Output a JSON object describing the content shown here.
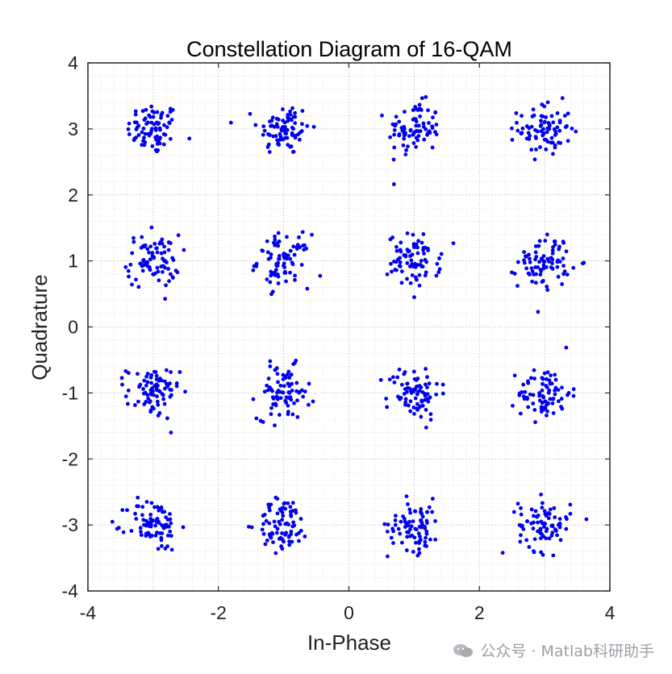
{
  "chart_data": {
    "type": "scatter",
    "title": "Constellation Diagram of 16-QAM",
    "xlabel": "In-Phase",
    "ylabel": "Quadrature",
    "xlim": [
      -4,
      4
    ],
    "ylim": [
      -4,
      4
    ],
    "xticks": [
      -4,
      -2,
      0,
      2,
      4
    ],
    "yticks": [
      -4,
      -3,
      -2,
      -1,
      0,
      1,
      2,
      3,
      4
    ],
    "grid": true,
    "minor_grid": true,
    "marker_color": "#0000ee",
    "ideal_points": [
      [
        -3,
        3
      ],
      [
        -1,
        3
      ],
      [
        1,
        3
      ],
      [
        3,
        3
      ],
      [
        -3,
        1
      ],
      [
        -1,
        1
      ],
      [
        1,
        1
      ],
      [
        3,
        1
      ],
      [
        -3,
        -1
      ],
      [
        -1,
        -1
      ],
      [
        1,
        -1
      ],
      [
        3,
        -1
      ],
      [
        -3,
        -3
      ],
      [
        -1,
        -3
      ],
      [
        1,
        -3
      ],
      [
        3,
        -3
      ]
    ],
    "noise_std": 0.2,
    "points_per_symbol": 80
  },
  "watermark": {
    "text": "公众号 · Matlab科研助手"
  }
}
